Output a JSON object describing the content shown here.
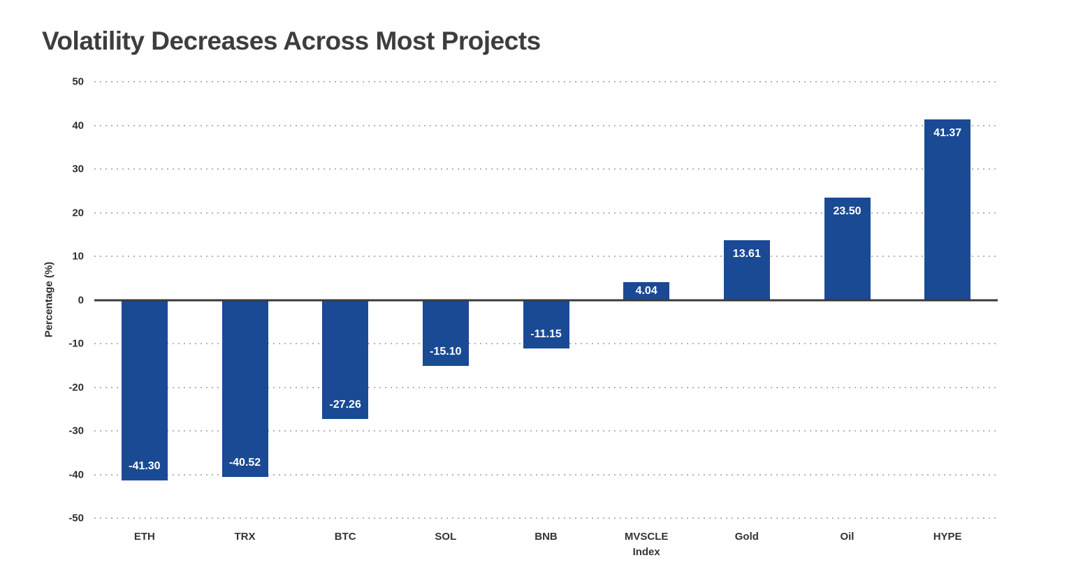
{
  "chart_data": {
    "type": "bar",
    "title": "Volatility Decreases Across Most Projects",
    "categories": [
      "ETH",
      "TRX",
      "BTC",
      "SOL",
      "BNB",
      "MVSCLE\nIndex",
      "Gold",
      "Oil",
      "HYPE"
    ],
    "values": [
      -41.3,
      -40.52,
      -27.26,
      -15.1,
      -11.15,
      4.04,
      13.61,
      23.5,
      41.37
    ],
    "value_labels": [
      "-41.30",
      "-40.52",
      "-27.26",
      "-15.10",
      "-11.15",
      "4.04",
      "13.61",
      "23.50",
      "41.37"
    ],
    "xlabel": "",
    "ylabel": "Percentage (%)",
    "ylim": [
      -50,
      50
    ],
    "yticks": [
      50,
      40,
      30,
      20,
      10,
      0,
      -10,
      -20,
      -30,
      -40,
      -50
    ],
    "grid": "dotted horizontal gridlines, solid zero line",
    "legend": "none",
    "colors": {
      "bar": "#1B4A94",
      "grid": "#b3b3b3",
      "zero_line": "#3a3a3a",
      "title": "#3d3d3d",
      "tick_label": "#2d2d2d",
      "value_label": "#ffffff"
    }
  }
}
